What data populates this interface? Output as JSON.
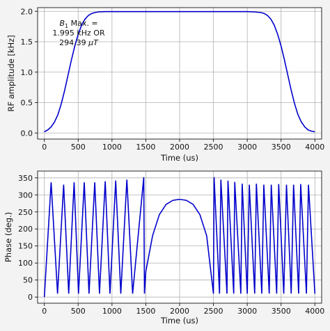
{
  "chart_data": [
    {
      "type": "line",
      "xlabel": "Time (us)",
      "ylabel": "RF amplitude [kHz]",
      "xlim": [
        -100,
        4100
      ],
      "ylim": [
        -0.1,
        2.06
      ],
      "xticks": [
        0,
        500,
        1000,
        1500,
        2000,
        2500,
        3000,
        3500,
        4000
      ],
      "yticks": [
        0.0,
        0.5,
        1.0,
        1.5,
        2.0
      ],
      "ytick_format": "fixed1",
      "grid": true,
      "color": "#0000cc",
      "annotation": {
        "line1_symbol": "B",
        "line1_subscript": "1",
        "line1_rest": " Max. =",
        "line2": "1.995 kHz OR",
        "line3_value": "294.39 ",
        "line3_unit": "μT"
      },
      "series": [
        {
          "x": [
            0,
            50,
            100,
            150,
            200,
            250,
            300,
            350,
            400,
            450,
            500,
            550,
            600,
            650,
            700,
            750,
            800,
            900,
            1000,
            3000,
            3100,
            3200,
            3250,
            3300,
            3350,
            3400,
            3450,
            3500,
            3550,
            3600,
            3650,
            3700,
            3750,
            3800,
            3850,
            3900,
            3950,
            4000
          ],
          "y": [
            0.02,
            0.05,
            0.1,
            0.18,
            0.3,
            0.48,
            0.7,
            0.95,
            1.2,
            1.43,
            1.62,
            1.77,
            1.87,
            1.93,
            1.965,
            1.98,
            1.99,
            1.995,
            1.995,
            1.995,
            1.99,
            1.98,
            1.965,
            1.93,
            1.87,
            1.77,
            1.62,
            1.43,
            1.2,
            0.95,
            0.7,
            0.48,
            0.3,
            0.18,
            0.1,
            0.05,
            0.03,
            0.02
          ]
        }
      ]
    },
    {
      "type": "line",
      "xlabel": "Time (us)",
      "ylabel": "Phase (deg.)",
      "xlim": [
        -100,
        4100
      ],
      "ylim": [
        -18,
        370
      ],
      "xticks": [
        0,
        500,
        1000,
        1500,
        2000,
        2500,
        3000,
        3500,
        4000
      ],
      "yticks": [
        0,
        50,
        100,
        150,
        200,
        250,
        300,
        350
      ],
      "ytick_format": "int",
      "grid": true,
      "color": "#0000cc",
      "series": [
        {
          "x": [
            0,
            100,
            195,
            285,
            360,
            440,
            505,
            590,
            660,
            745,
            815,
            900,
            970,
            1055,
            1130,
            1220,
            1305,
            1470,
            1480,
            1500,
            1600,
            1700,
            1800,
            1900,
            2000,
            2100,
            2200,
            2300,
            2400,
            2500,
            2510,
            2590,
            2610,
            2700,
            2715,
            2800,
            2815,
            2905,
            2925,
            3000,
            3030,
            3110,
            3135,
            3215,
            3245,
            3325,
            3355,
            3435,
            3465,
            3540,
            3580,
            3650,
            3685,
            3760,
            3790,
            3875,
            3905,
            4000
          ],
          "y": [
            0,
            337,
            10,
            330,
            10,
            337,
            10,
            337,
            10,
            337,
            10,
            340,
            10,
            342,
            10,
            345,
            10,
            352,
            10,
            75,
            180,
            242,
            272,
            284,
            287,
            284,
            272,
            242,
            180,
            10,
            352,
            10,
            345,
            10,
            342,
            10,
            338,
            10,
            333,
            10,
            330,
            10,
            333,
            10,
            330,
            10,
            330,
            10,
            332,
            10,
            330,
            10,
            330,
            10,
            332,
            10,
            330,
            10
          ]
        }
      ]
    }
  ]
}
